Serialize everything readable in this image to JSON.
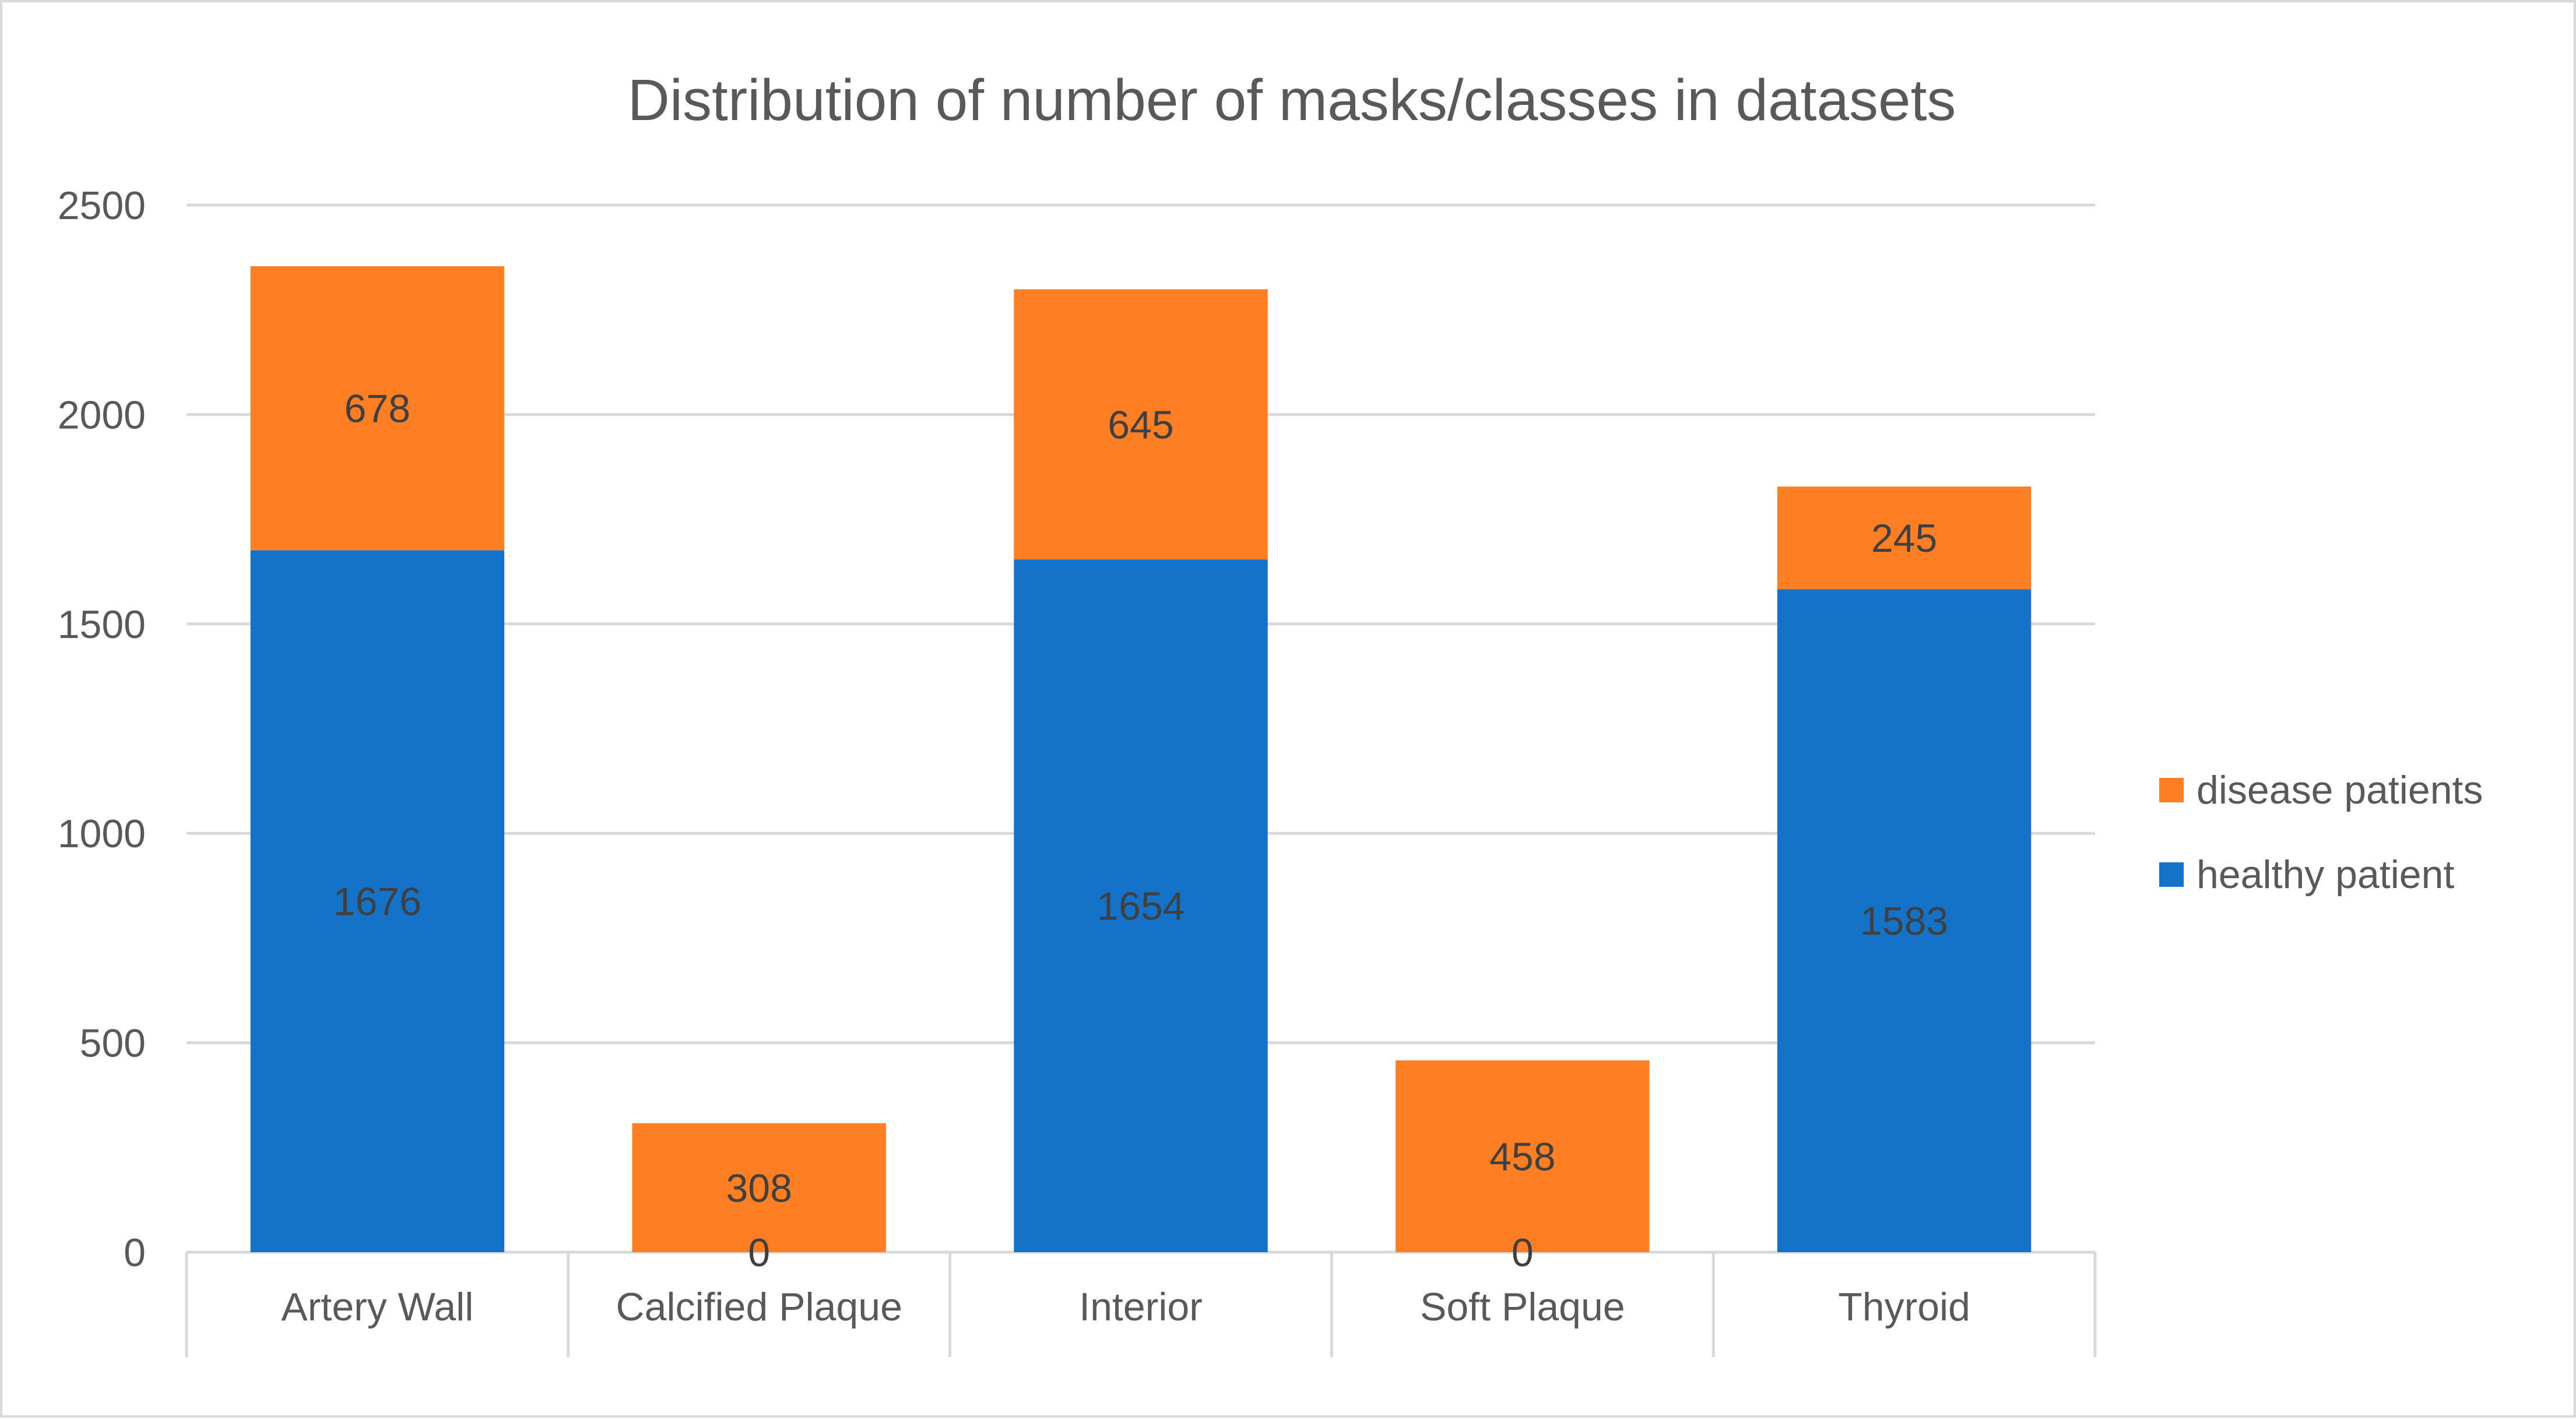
{
  "chart_data": {
    "type": "bar",
    "stacked": true,
    "title": "Distribution of number of masks/classes in datasets",
    "xlabel": "",
    "ylabel": "",
    "categories": [
      "Artery Wall",
      "Calcified Plaque",
      "Interior",
      "Soft Plaque",
      "Thyroid"
    ],
    "series": [
      {
        "name": "healthy patient",
        "color": "#1473c8",
        "values": [
          1676,
          0,
          1654,
          0,
          1583
        ]
      },
      {
        "name": "disease patients",
        "color": "#fd7e23",
        "values": [
          678,
          308,
          645,
          458,
          245
        ]
      }
    ],
    "ylim": [
      0,
      2500
    ],
    "yticks": [
      0,
      500,
      1000,
      1500,
      2000,
      2500
    ],
    "grid": true,
    "legend_position": "right",
    "legend_order": [
      "disease patients",
      "healthy patient"
    ]
  }
}
